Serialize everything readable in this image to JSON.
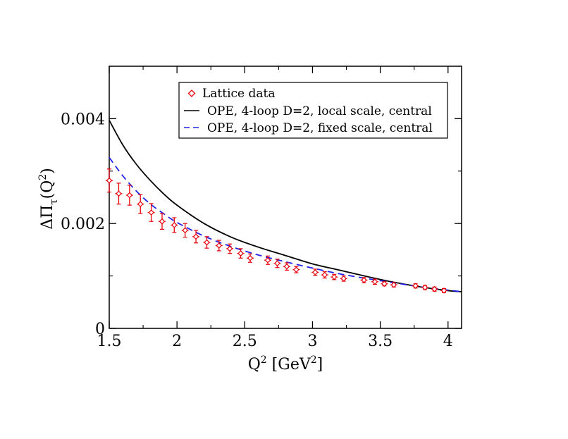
{
  "chart_data": {
    "type": "scatter",
    "xlabel": "Q",
    "xlabel_sup": "2",
    "xlabel_unit_open": " [GeV",
    "xlabel_unit_sup": "2",
    "xlabel_unit_close": "]",
    "ylabel_main": "ΔΠ",
    "ylabel_sub": "τ",
    "ylabel_arg_open": "(Q",
    "ylabel_arg_sup": "2",
    "ylabel_arg_close": ")",
    "xlim": [
      1.5,
      4.1
    ],
    "ylim": [
      0,
      0.005
    ],
    "x_ticks": [
      1.5,
      2,
      2.5,
      3,
      3.5,
      4
    ],
    "x_tick_labels": [
      "1.5",
      "2",
      "2.5",
      "3",
      "3.5",
      "4"
    ],
    "y_ticks": [
      0,
      0.002,
      0.004
    ],
    "y_tick_labels": [
      "0",
      "0.002",
      "0.004"
    ],
    "legend_position": "top-right",
    "series": [
      {
        "name": "Lattice data",
        "kind": "points",
        "color": "#e8000b",
        "x": [
          1.5,
          1.57,
          1.65,
          1.73,
          1.81,
          1.89,
          1.98,
          2.06,
          2.14,
          2.22,
          2.31,
          2.39,
          2.47,
          2.54,
          2.67,
          2.74,
          2.81,
          2.88,
          3.02,
          3.09,
          3.16,
          3.23,
          3.38,
          3.46,
          3.53,
          3.6,
          3.76,
          3.83,
          3.9,
          3.97
        ],
        "y": [
          0.00282,
          0.00257,
          0.00254,
          0.00237,
          0.00221,
          0.00204,
          0.00197,
          0.00187,
          0.00175,
          0.00164,
          0.00158,
          0.00152,
          0.00143,
          0.00134,
          0.0013,
          0.00124,
          0.00118,
          0.00112,
          0.00107,
          0.00102,
          0.00098,
          0.00095,
          0.00092,
          0.00089,
          0.00085,
          0.00083,
          0.00081,
          0.00078,
          0.00075,
          0.00072
        ],
        "yerr": [
          0.00022,
          0.0002,
          0.00019,
          0.00018,
          0.00017,
          0.00015,
          0.00014,
          0.00013,
          0.00012,
          0.00011,
          0.0001,
          9e-05,
          9e-05,
          8e-05,
          8e-05,
          8e-05,
          7e-05,
          6e-05,
          6e-05,
          6e-05,
          5e-05,
          5e-05,
          5e-05,
          5e-05,
          4e-05,
          4e-05,
          4e-05,
          4e-05,
          4e-05,
          4e-05
        ]
      },
      {
        "name": "OPE, 4-loop D=2, local scale, central",
        "kind": "line",
        "style": "solid",
        "color": "#000000",
        "x": [
          1.5,
          1.6,
          1.7,
          1.8,
          1.9,
          2.0,
          2.2,
          2.4,
          2.6,
          2.8,
          3.0,
          3.2,
          3.4,
          3.6,
          3.8,
          4.0,
          4.1
        ],
        "y": [
          0.00397,
          0.0035,
          0.00313,
          0.00283,
          0.00257,
          0.00235,
          0.002,
          0.00174,
          0.00155,
          0.00139,
          0.00123,
          0.00111,
          0.00099,
          0.00088,
          0.00079,
          0.00072,
          0.0007
        ]
      },
      {
        "name": "OPE, 4-loop D=2, fixed scale, central",
        "kind": "line",
        "style": "dashed",
        "color": "#2222e8",
        "x": [
          1.5,
          1.6,
          1.7,
          1.8,
          1.9,
          2.0,
          2.2,
          2.4,
          2.6,
          2.8,
          3.0,
          3.2,
          3.4,
          3.6,
          3.8,
          4.0,
          4.1
        ],
        "y": [
          0.00326,
          0.00291,
          0.00262,
          0.00238,
          0.00219,
          0.00202,
          0.00176,
          0.00156,
          0.0014,
          0.00127,
          0.00115,
          0.00104,
          0.00095,
          0.00087,
          0.00079,
          0.00073,
          0.0007
        ]
      }
    ]
  }
}
